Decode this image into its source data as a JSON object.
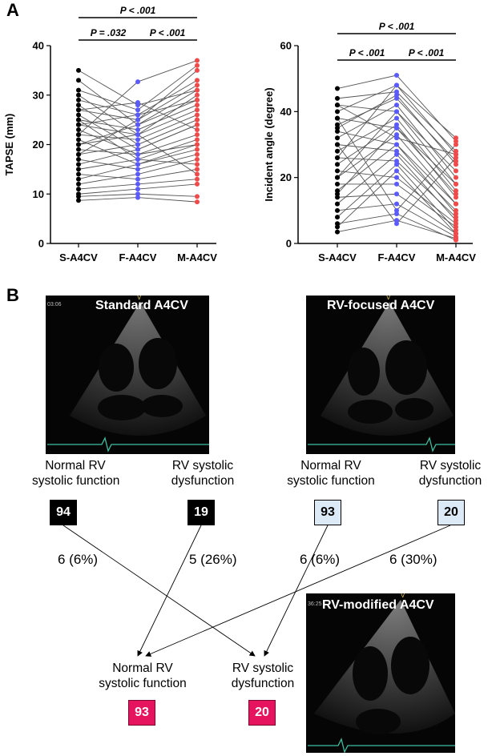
{
  "panel_a_label": "A",
  "panel_b_label": "B",
  "chart_data": [
    {
      "type": "line",
      "categories": [
        "S-A4CV",
        "F-A4CV",
        "M-A4CV"
      ],
      "ylabel": "TAPSE (mm)",
      "ylim": [
        0,
        40
      ],
      "yticks": [
        0,
        10,
        20,
        30,
        40
      ],
      "point_colors": [
        "#000000",
        "#5a5aff",
        "#f04a4a"
      ],
      "significance": [
        {
          "pair": [
            "S-A4CV",
            "F-A4CV"
          ],
          "label": "P = .032"
        },
        {
          "pair": [
            "F-A4CV",
            "M-A4CV"
          ],
          "label": "P < .001"
        },
        {
          "pair": [
            "S-A4CV",
            "M-A4CV"
          ],
          "label": "P < .001"
        }
      ],
      "paired_values_sample": [
        [
          35,
          28,
          31
        ],
        [
          33,
          24,
          29
        ],
        [
          31,
          27,
          36
        ],
        [
          30,
          22,
          27
        ],
        [
          29,
          26,
          33
        ],
        [
          28,
          20,
          25
        ],
        [
          27,
          25,
          32
        ],
        [
          26,
          19,
          24
        ],
        [
          25,
          23,
          28
        ],
        [
          25,
          17,
          21
        ],
        [
          24,
          22,
          30
        ],
        [
          23,
          18,
          20
        ],
        [
          22,
          21,
          26
        ],
        [
          21,
          16,
          19
        ],
        [
          20,
          24,
          31
        ],
        [
          19,
          18,
          22
        ],
        [
          18,
          20,
          25
        ],
        [
          17,
          15,
          18
        ],
        [
          16,
          19,
          24
        ],
        [
          15,
          17,
          16
        ],
        [
          14,
          13,
          15
        ],
        [
          13,
          16,
          20
        ],
        [
          12,
          14,
          17
        ],
        [
          11,
          12,
          13
        ],
        [
          10,
          11,
          12
        ],
        [
          9.5,
          10,
          9.5
        ],
        [
          8.7,
          9.3,
          8.4
        ],
        [
          22,
          32.7,
          37
        ],
        [
          27,
          28.5,
          23
        ],
        [
          20,
          22,
          14
        ],
        [
          18,
          25,
          35
        ],
        [
          24,
          26,
          29
        ]
      ]
    },
    {
      "type": "line",
      "categories": [
        "S-A4CV",
        "F-A4CV",
        "M-A4CV"
      ],
      "ylabel": "Incident angle (degree)",
      "ylim": [
        0,
        60
      ],
      "yticks": [
        0,
        20,
        40,
        60
      ],
      "point_colors": [
        "#000000",
        "#5a5aff",
        "#f04a4a"
      ],
      "significance": [
        {
          "pair": [
            "S-A4CV",
            "F-A4CV"
          ],
          "label": "P < .001"
        },
        {
          "pair": [
            "F-A4CV",
            "M-A4CV"
          ],
          "label": "P < .001"
        },
        {
          "pair": [
            "S-A4CV",
            "M-A4CV"
          ],
          "label": "P < .001"
        }
      ],
      "paired_values_sample": [
        [
          47,
          51,
          31
        ],
        [
          44,
          46,
          28
        ],
        [
          42,
          40,
          22
        ],
        [
          40,
          48,
          27
        ],
        [
          38,
          35,
          18
        ],
        [
          36,
          44,
          25
        ],
        [
          34,
          30,
          12
        ],
        [
          32,
          42,
          20
        ],
        [
          30,
          28,
          10
        ],
        [
          28,
          38,
          16
        ],
        [
          26,
          25,
          8
        ],
        [
          24,
          36,
          14
        ],
        [
          22,
          20,
          6
        ],
        [
          20,
          33,
          12
        ],
        [
          18,
          18,
          5
        ],
        [
          16,
          30,
          9
        ],
        [
          14,
          15,
          3
        ],
        [
          12,
          27,
          7
        ],
        [
          10,
          12,
          2
        ],
        [
          8,
          24,
          4
        ],
        [
          6,
          9,
          1
        ],
        [
          5,
          22,
          3
        ],
        [
          3.5,
          7,
          1.5
        ],
        [
          38,
          10,
          30
        ],
        [
          30,
          6,
          26
        ],
        [
          26,
          48,
          32
        ],
        [
          35,
          45,
          24
        ],
        [
          20,
          40,
          18
        ],
        [
          15,
          35,
          15
        ],
        [
          42,
          32,
          27
        ]
      ]
    }
  ],
  "panel_b": {
    "views": [
      {
        "title": "Standard A4CV",
        "timestamp": "03:06",
        "top_marker": "V"
      },
      {
        "title": "RV-focused A4CV",
        "timestamp": "",
        "top_marker": "V"
      },
      {
        "title": "RV-modified A4CV",
        "timestamp": "36:25",
        "top_marker": "V"
      }
    ],
    "standard": {
      "normal_label": [
        "Normal RV",
        "systolic function"
      ],
      "dysfunction_label": [
        "RV systolic",
        "dysfunction"
      ],
      "normal_count": "94",
      "dysfunction_count": "19",
      "normal_reclassified": "6 (6%)",
      "dysfunction_reclassified": "5 (26%)"
    },
    "focused": {
      "normal_label": [
        "Normal RV",
        "systolic function"
      ],
      "dysfunction_label": [
        "RV systolic",
        "dysfunction"
      ],
      "normal_count": "93",
      "dysfunction_count": "20",
      "normal_reclassified": "6 (6%)",
      "dysfunction_reclassified": "6 (30%)"
    },
    "modified": {
      "normal_label": [
        "Normal RV",
        "systolic function"
      ],
      "dysfunction_label": [
        "RV systolic",
        "dysfunction"
      ],
      "normal_count": "93",
      "dysfunction_count": "20"
    }
  }
}
